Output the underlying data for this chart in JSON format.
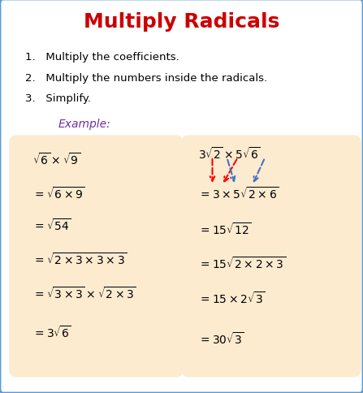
{
  "title": "Multiply Radicals",
  "title_color": "#cc0000",
  "title_fontsize": 18,
  "bg_color": "#ffffff",
  "border_color": "#5b9bd5",
  "steps": [
    "1.   Multiply the coefficients.",
    "2.   Multiply the numbers inside the radicals.",
    "3.   Simplify."
  ],
  "example_label": "Example:",
  "example_color": "#7030a0",
  "box_facecolor": "#fdebd0",
  "left_lines": [
    "$\\sqrt{6}\\times\\sqrt{9}$",
    "$=\\sqrt{6\\times9}$",
    "$=\\sqrt{54}$",
    "$=\\sqrt{2\\times3\\times3\\times3}$",
    "$=\\sqrt{3\\times3}\\times\\sqrt{2\\times3}$",
    "$=3\\sqrt{6}$"
  ],
  "right_lines": [
    "$3\\sqrt{2}\\times5\\sqrt{6}$",
    "$=3\\times5\\sqrt{2\\times6}$",
    "$=15\\sqrt{12}$",
    "$=15\\sqrt{2\\times2\\times3}$",
    "$=15\\times2\\sqrt{3}$",
    "$=30\\sqrt{3}$"
  ]
}
